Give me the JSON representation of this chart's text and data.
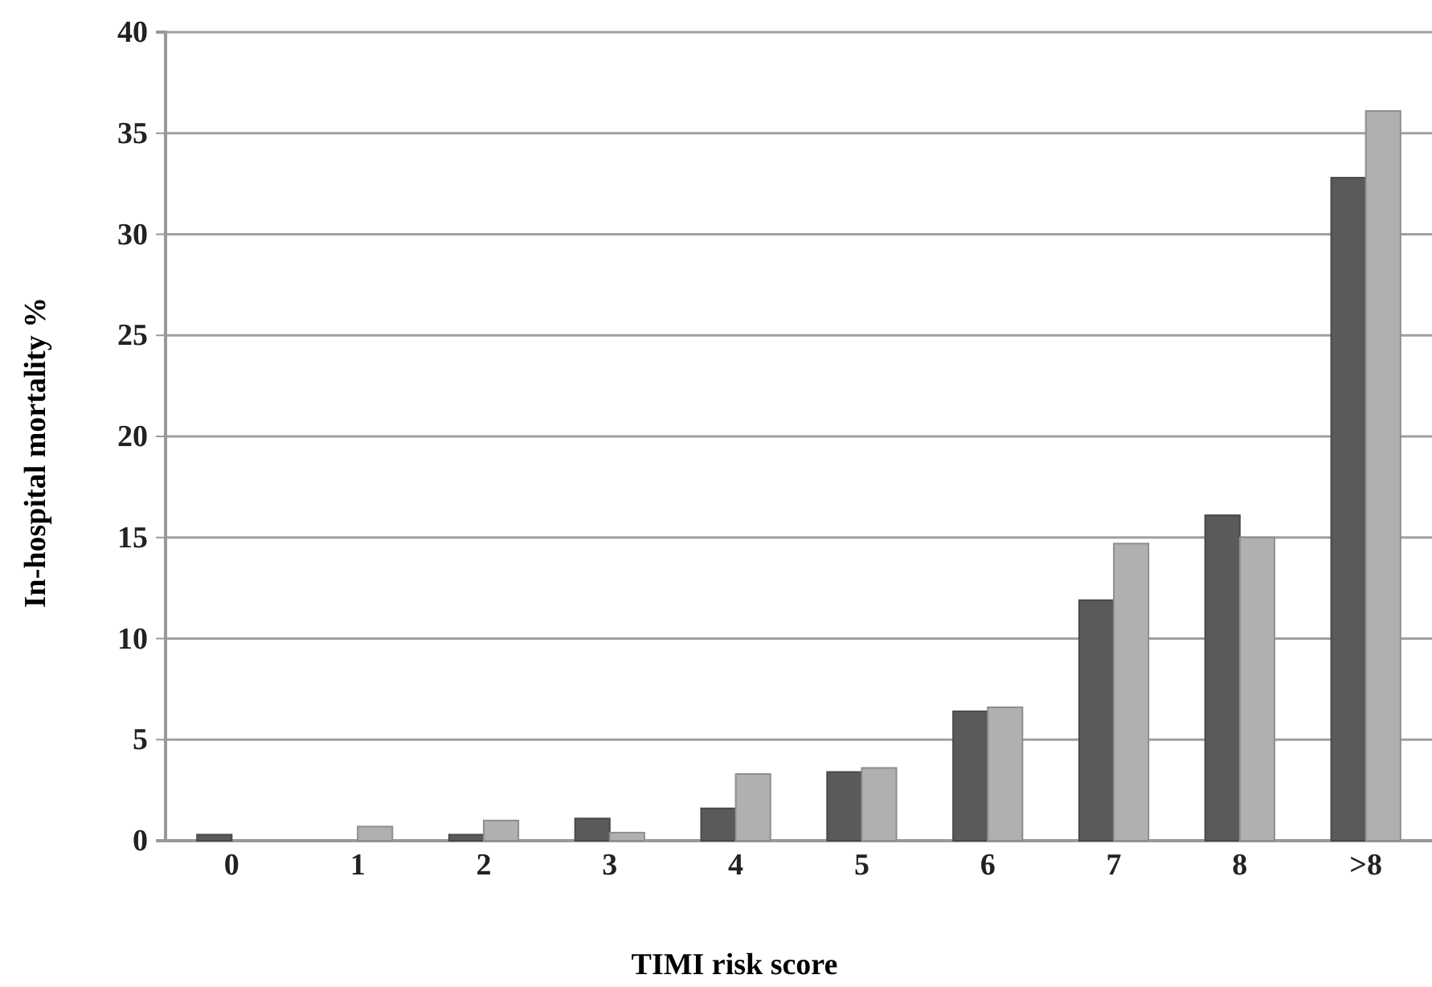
{
  "chart_data": {
    "type": "bar",
    "xlabel": "TIMI risk score",
    "ylabel": "In-hospital mortality %",
    "categories": [
      "0",
      "1",
      "2",
      "3",
      "4",
      "5",
      "6",
      "7",
      "8",
      ">8"
    ],
    "series": [
      {
        "color": "#5a5a5a",
        "values": [
          0.3,
          0,
          0.3,
          1.1,
          1.6,
          3.4,
          6.4,
          11.9,
          16.1,
          32.8
        ]
      },
      {
        "color": "#b0b0b0",
        "values": [
          0,
          0.7,
          1.0,
          0.4,
          3.3,
          3.6,
          6.6,
          14.7,
          15.0,
          36.1
        ]
      }
    ],
    "ylim": [
      0,
      40
    ],
    "yticks": [
      0,
      5,
      10,
      15,
      20,
      25,
      30,
      35,
      40
    ],
    "grid": "y"
  }
}
